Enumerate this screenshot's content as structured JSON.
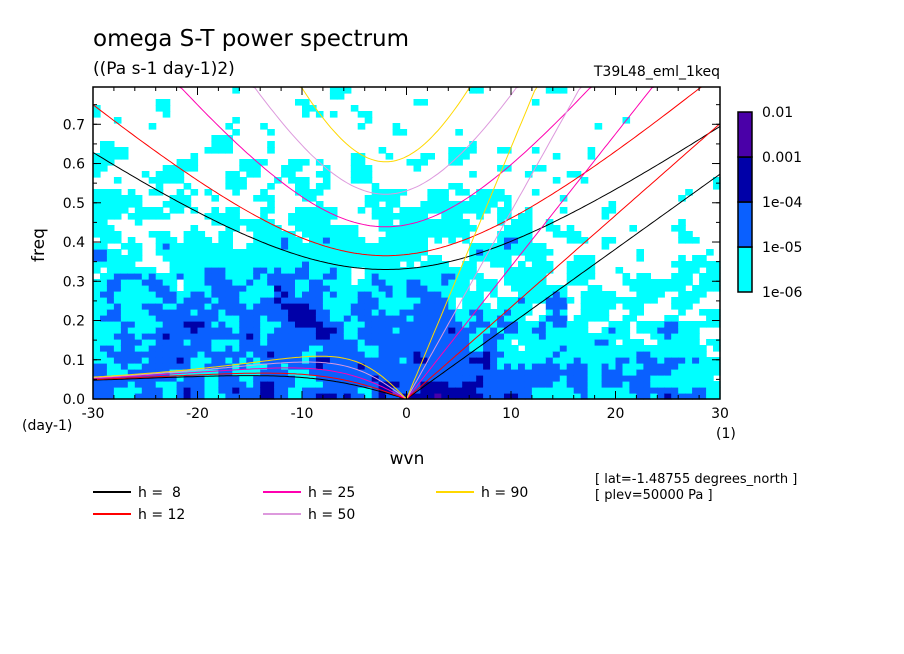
{
  "chart_data": {
    "type": "heatmap",
    "title": "omega S-T power spectrum",
    "units": "((Pa s-1 day-1)2)",
    "dataset": "T39L48_eml_1keq",
    "xlabel": "wvn",
    "xunits": "(1)",
    "ylabel": "freq",
    "yunits": "(day-1)",
    "xlim": [
      -30,
      30
    ],
    "ylim": [
      0,
      0.795
    ],
    "xticks": [
      "-30",
      "-20",
      "-10",
      "0",
      "10",
      "20",
      "30"
    ],
    "yticks": [
      "0.0",
      "0.1",
      "0.2",
      "0.3",
      "0.4",
      "0.5",
      "0.6",
      "0.7"
    ],
    "color_levels": [
      "1e-06",
      "1e-05",
      "1e-04",
      "0.001",
      "0.01"
    ],
    "level_colors": [
      "#00ffff",
      "#0a60ff",
      "#0000a8",
      "#4a00a8"
    ],
    "dispersion_curves": [
      {
        "label": "h =  8",
        "h": 8,
        "color": "#000000"
      },
      {
        "label": "h = 12",
        "h": 12,
        "color": "#ff0000"
      },
      {
        "label": "h = 25",
        "h": 25,
        "color": "#ff00b0"
      },
      {
        "label": "h = 50",
        "h": 50,
        "color": "#dd99dd"
      },
      {
        "label": "h = 90",
        "h": 90,
        "color": "#ffd800"
      }
    ],
    "annotations": [
      "[ lat=-1.48755 degrees_north ]",
      "[ plev=50000 Pa ]"
    ]
  }
}
